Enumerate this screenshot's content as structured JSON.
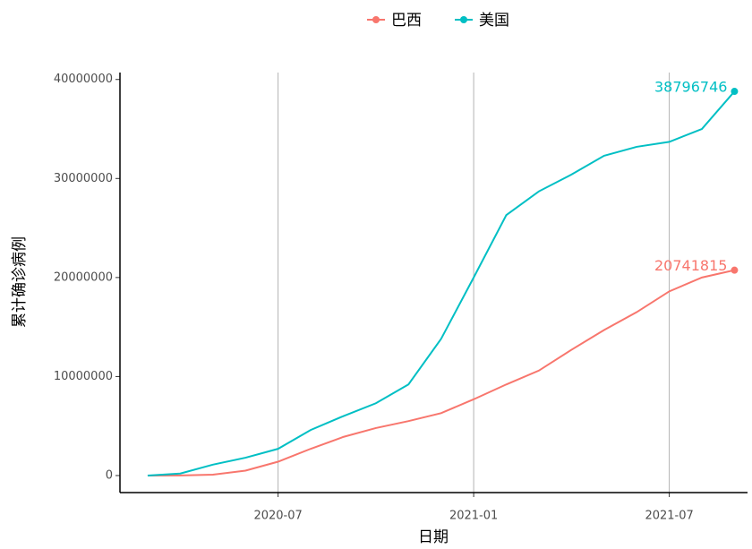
{
  "chart_data": {
    "type": "line",
    "x": [
      "2020-03",
      "2020-04",
      "2020-05",
      "2020-06",
      "2020-07",
      "2020-08",
      "2020-09",
      "2020-10",
      "2020-11",
      "2020-12",
      "2021-01",
      "2021-02",
      "2021-03",
      "2021-04",
      "2021-05",
      "2021-06",
      "2021-07",
      "2021-08",
      "2021-09"
    ],
    "series": [
      {
        "name": "巴西",
        "color": "#F8766D",
        "values": [
          0,
          6000,
          90000,
          500000,
          1400000,
          2700000,
          3900000,
          4800000,
          5500000,
          6300000,
          7700000,
          9200000,
          10600000,
          12700000,
          14700000,
          16500000,
          18600000,
          20000000,
          20741815
        ]
      },
      {
        "name": "美国",
        "color": "#00BFC4",
        "values": [
          0,
          200000,
          1100000,
          1800000,
          2700000,
          4600000,
          6000000,
          7300000,
          9200000,
          13800000,
          20000000,
          26300000,
          28700000,
          30400000,
          32300000,
          33200000,
          33700000,
          35000000,
          38796746
        ]
      }
    ],
    "xticks": [
      "2020-07",
      "2021-01",
      "2021-07"
    ],
    "ylim": [
      -1720000,
      40700000
    ],
    "yticks": [
      0,
      10000000,
      20000000,
      30000000,
      40000000
    ],
    "xlabel": "日期",
    "ylabel": "累计确诊病例",
    "grid": true,
    "legend": "top"
  }
}
